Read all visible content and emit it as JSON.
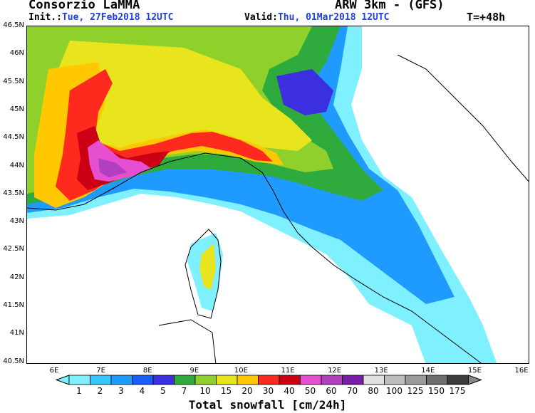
{
  "header": {
    "title": "Consorzio LaMMA",
    "model": "ARW 3km - (GFS)",
    "init_label": "Init.:",
    "init_value": "Tue, 27Feb2018 12UTC",
    "valid_label": "Valid:",
    "valid_value": "Thu, 01Mar2018 12UTC",
    "step": "T=+48h"
  },
  "map": {
    "lat_labels": [
      "46.5N",
      "46N",
      "45.5N",
      "45N",
      "44.5N",
      "44N",
      "43.5N",
      "43N",
      "42.5N",
      "42N",
      "41.5N",
      "41N",
      "40.5N"
    ],
    "lon_labels": [
      "6E",
      "7E",
      "8E",
      "9E",
      "10E",
      "11E",
      "12E",
      "13E",
      "14E",
      "15E",
      "16E"
    ],
    "variable": "Total snowfall",
    "units": "[cm/24h]"
  },
  "legend": {
    "title": "Total snowfall [cm/24h]",
    "values": [
      "1",
      "2",
      "3",
      "4",
      "5",
      "7",
      "10",
      "15",
      "20",
      "30",
      "40",
      "50",
      "60",
      "70",
      "80",
      "100",
      "125",
      "150",
      "175"
    ],
    "colors": [
      "#7ff0ff",
      "#33c8ff",
      "#1f9bff",
      "#1a5cff",
      "#3b2fe0",
      "#2eab3c",
      "#8fd12a",
      "#e8e51e",
      "#ffc800",
      "#ff2a1e",
      "#cc0014",
      "#e64fd0",
      "#b040c0",
      "#7a1ca8",
      "#e0e0e0",
      "#bdbdbd",
      "#9a9a9a",
      "#6e6e6e",
      "#3c3c3c"
    ]
  }
}
